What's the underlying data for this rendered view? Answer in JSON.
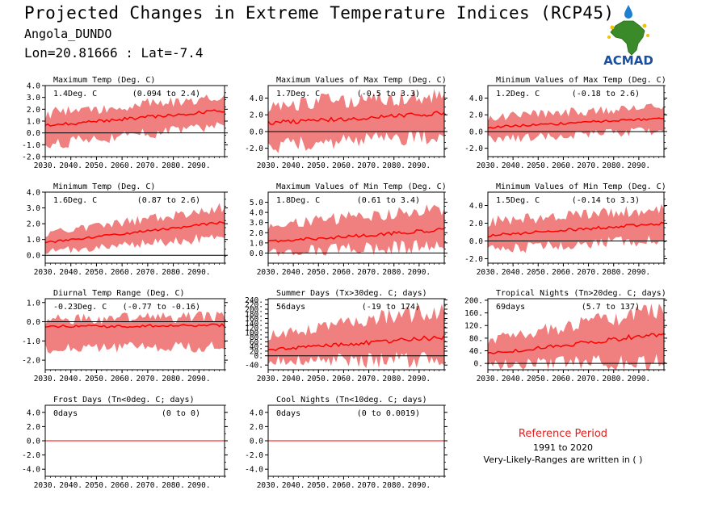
{
  "header": {
    "title": "Projected Changes in Extreme Temperature Indices (RCP45)",
    "station": "Angola_DUNDO",
    "coords": "Lon=20.81666 : Lat=-7.4"
  },
  "logo": {
    "text": "ACMAD",
    "icon": "africa-map-logo"
  },
  "reference": {
    "title": "Reference Period",
    "years": "1991 to 2020",
    "note": "Very-Likely-Ranges are written in ( )"
  },
  "colors": {
    "band": "#f08080",
    "line": "#ff0000",
    "zero": "#000000",
    "reference_title": "#e02020",
    "logo_text": "#1a4fa0",
    "logo_map": "#3a8a2a",
    "logo_drop": "#1e7fd0"
  },
  "chart_data": [
    {
      "type": "area",
      "title": "Maximum Temp (Deg. C)",
      "value_label": "1.4Deg. C",
      "range_label": "(0.094 to 2.4)",
      "x": [
        2030,
        2100
      ],
      "xticks": [
        "2030.",
        "2040.",
        "2050.",
        "2060.",
        "2070.",
        "2080.",
        "2090."
      ],
      "ylim": [
        -2.0,
        4.0
      ],
      "yticks": [
        "-2.0",
        "-1.0",
        "0.0",
        "1.0",
        "2.0",
        "3.0",
        "4.0"
      ],
      "mean_start": 0.6,
      "mean_end": 1.9,
      "low_start": -0.8,
      "low_end": 0.8,
      "high_start": 1.5,
      "high_end": 2.9
    },
    {
      "type": "area",
      "title": "Maximum Values of Max Temp (Deg. C)",
      "value_label": "1.7Deg. C",
      "range_label": "(-0.5 to 3.3)",
      "x": [
        2030,
        2100
      ],
      "xticks": [
        "2030.",
        "2040.",
        "2050.",
        "2060.",
        "2070.",
        "2080.",
        "2090."
      ],
      "ylim": [
        -3.0,
        5.5
      ],
      "yticks": [
        "-2.0",
        "0.0",
        "2.0",
        "4.0"
      ],
      "mean_start": 1.0,
      "mean_end": 2.2,
      "low_start": -1.5,
      "low_end": -0.2,
      "high_start": 3.0,
      "high_end": 4.0
    },
    {
      "type": "area",
      "title": "Minimum Values of Max Temp (Deg. C)",
      "value_label": "1.2Deg. C",
      "range_label": "(-0.18 to 2.6)",
      "x": [
        2030,
        2100
      ],
      "xticks": [
        "2030.",
        "2040.",
        "2050.",
        "2060.",
        "2070.",
        "2080.",
        "2090."
      ],
      "ylim": [
        -3.0,
        5.5
      ],
      "yticks": [
        "-2.0",
        "0.0",
        "2.0",
        "4.0"
      ],
      "mean_start": 0.5,
      "mean_end": 1.6,
      "low_start": -0.8,
      "low_end": 0.3,
      "high_start": 1.6,
      "high_end": 2.8
    },
    {
      "type": "area",
      "title": "Minimum Temp (Deg. C)",
      "value_label": "1.6Deg. C",
      "range_label": "(0.87 to 2.6)",
      "x": [
        2030,
        2100
      ],
      "xticks": [
        "2030.",
        "2040.",
        "2050.",
        "2060.",
        "2070.",
        "2080.",
        "2090."
      ],
      "ylim": [
        -0.5,
        4.0
      ],
      "yticks": [
        "0.0",
        "1.0",
        "2.0",
        "3.0",
        "4.0"
      ],
      "mean_start": 0.8,
      "mean_end": 2.1,
      "low_start": 0.3,
      "low_end": 1.3,
      "high_start": 1.3,
      "high_end": 2.9
    },
    {
      "type": "area",
      "title": "Maximum Values of Min Temp (Deg. C)",
      "value_label": "1.8Deg. C",
      "range_label": "(0.61 to 3.4)",
      "x": [
        2030,
        2100
      ],
      "xticks": [
        "2030.",
        "2040.",
        "2050.",
        "2060.",
        "2070.",
        "2080.",
        "2090."
      ],
      "ylim": [
        -1.0,
        6.0
      ],
      "yticks": [
        "0.0",
        "1.0",
        "2.0",
        "3.0",
        "4.0",
        "5.0"
      ],
      "mean_start": 1.1,
      "mean_end": 2.3,
      "low_start": 0.3,
      "low_end": 0.9,
      "high_start": 2.6,
      "high_end": 4.2
    },
    {
      "type": "area",
      "title": "Minimum Values of Min Temp (Deg. C)",
      "value_label": "1.5Deg. C",
      "range_label": "(-0.14 to 3.3)",
      "x": [
        2030,
        2100
      ],
      "xticks": [
        "2030.",
        "2040.",
        "2050.",
        "2060.",
        "2070.",
        "2080.",
        "2090."
      ],
      "ylim": [
        -2.5,
        5.5
      ],
      "yticks": [
        "-2.0",
        "0.0",
        "2.0",
        "4.0"
      ],
      "mean_start": 0.6,
      "mean_end": 2.0,
      "low_start": -0.8,
      "low_end": 0.4,
      "high_start": 2.0,
      "high_end": 3.4
    },
    {
      "type": "area",
      "title": "Diurnal Temp Range (Deg. C)",
      "value_label": "-0.23Deg. C",
      "range_label": "(-0.77 to -0.16)",
      "x": [
        2030,
        2100
      ],
      "xticks": [
        "2030.",
        "2040.",
        "2050.",
        "2060.",
        "2070.",
        "2080.",
        "2090."
      ],
      "ylim": [
        -2.5,
        1.2
      ],
      "yticks": [
        "-2.0",
        "-1.0",
        "0.0",
        "1.0"
      ],
      "mean_start": -0.25,
      "mean_end": -0.2,
      "low_start": -1.3,
      "low_end": -1.2,
      "high_start": 0.0,
      "high_end": 0.2
    },
    {
      "type": "area",
      "title": "Summer Days (Tx>30deg. C; days)",
      "value_label": "56days",
      "range_label": "(-19 to 174)",
      "x": [
        2030,
        2100
      ],
      "xticks": [
        "2030.",
        "2040.",
        "2050.",
        "2060.",
        "2070.",
        "2080.",
        "2090."
      ],
      "ylim": [
        -60,
        245
      ],
      "yticks": [
        "-40.",
        "0.",
        "20.",
        "40.",
        "60.",
        "80.",
        "100.",
        "120.",
        "140.",
        "160.",
        "180.",
        "200.",
        "220.",
        "240."
      ],
      "mean_start": 25,
      "mean_end": 80,
      "low_start": -15,
      "low_end": -5,
      "high_start": 80,
      "high_end": 190
    },
    {
      "type": "area",
      "title": "Tropical Nights (Tn>20deg. C; days)",
      "value_label": "69days",
      "range_label": "(5.7 to 137)",
      "x": [
        2030,
        2100
      ],
      "xticks": [
        "2030.",
        "2040.",
        "2050.",
        "2060.",
        "2070.",
        "2080.",
        "2090."
      ],
      "ylim": [
        -20,
        205
      ],
      "yticks": [
        "0.",
        "40.",
        "80.",
        "120.",
        "160.",
        "200."
      ],
      "mean_start": 30,
      "mean_end": 95,
      "low_start": 0,
      "low_end": 20,
      "high_start": 70,
      "high_end": 160
    },
    {
      "type": "area",
      "title": "Frost Days (Tn<0deg. C; days)",
      "value_label": "0days",
      "range_label": "(0 to 0)",
      "x": [
        2030,
        2100
      ],
      "xticks": [
        "2030.",
        "2040.",
        "2050.",
        "2060.",
        "2070.",
        "2080.",
        "2090."
      ],
      "ylim": [
        -5.0,
        5.0
      ],
      "yticks": [
        "-4.0",
        "-2.0",
        "0.0",
        "2.0",
        "4.0"
      ],
      "mean_start": 0,
      "mean_end": 0,
      "low_start": 0,
      "low_end": 0,
      "high_start": 0,
      "high_end": 0
    },
    {
      "type": "area",
      "title": "Cool Nights (Tn<10deg. C; days)",
      "value_label": "0days",
      "range_label": "(0 to 0.0019)",
      "x": [
        2030,
        2100
      ],
      "xticks": [
        "2030.",
        "2040.",
        "2050.",
        "2060.",
        "2070.",
        "2080.",
        "2090."
      ],
      "ylim": [
        -5.0,
        5.0
      ],
      "yticks": [
        "-4.0",
        "-2.0",
        "0.0",
        "2.0",
        "4.0"
      ],
      "mean_start": 0,
      "mean_end": 0,
      "low_start": 0,
      "low_end": 0,
      "high_start": 0,
      "high_end": 0
    }
  ]
}
